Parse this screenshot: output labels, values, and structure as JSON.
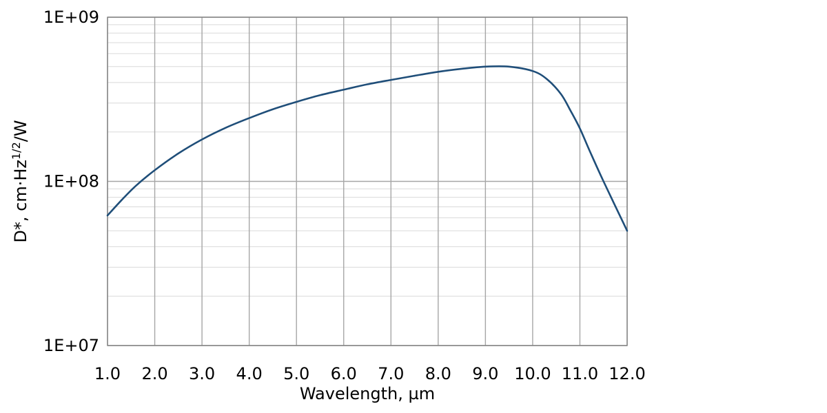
{
  "chart_data": {
    "type": "line",
    "xlabel": "Wavelength, µm",
    "ylabel": {
      "main": "D*, cm·Hz",
      "superscript": "1/2",
      "suffix": "/W"
    },
    "x_ticks": [
      "1.0",
      "2.0",
      "3.0",
      "4.0",
      "5.0",
      "6.0",
      "7.0",
      "8.0",
      "9.0",
      "10.0",
      "11.0",
      "12.0"
    ],
    "y_ticks": [
      "1E+07",
      "1E+08",
      "1E+09"
    ],
    "xlim": [
      1.0,
      12.0
    ],
    "ylim": [
      10000000,
      1000000000
    ],
    "y_scale": "log",
    "grid": true,
    "legend": "none",
    "colors": {
      "line": "#1f4e79",
      "grid": "#a6a6a6",
      "axis": "#808080"
    },
    "series": [
      {
        "x": [
          1.0,
          1.3,
          1.6,
          2.0,
          2.5,
          3.0,
          3.5,
          4.0,
          4.5,
          5.0,
          5.5,
          6.0,
          6.5,
          7.0,
          7.5,
          8.0,
          8.5,
          9.0,
          9.5,
          10.0,
          10.3,
          10.6,
          10.8,
          11.0,
          11.2,
          11.5,
          12.0
        ],
        "y": [
          62000000,
          77000000,
          94000000,
          117000000,
          148000000,
          180000000,
          212000000,
          243000000,
          275000000,
          305000000,
          335000000,
          362000000,
          390000000,
          415000000,
          440000000,
          465000000,
          485000000,
          500000000,
          500000000,
          470000000,
          420000000,
          340000000,
          270000000,
          210000000,
          155000000,
          100000000,
          50000000
        ]
      }
    ]
  }
}
